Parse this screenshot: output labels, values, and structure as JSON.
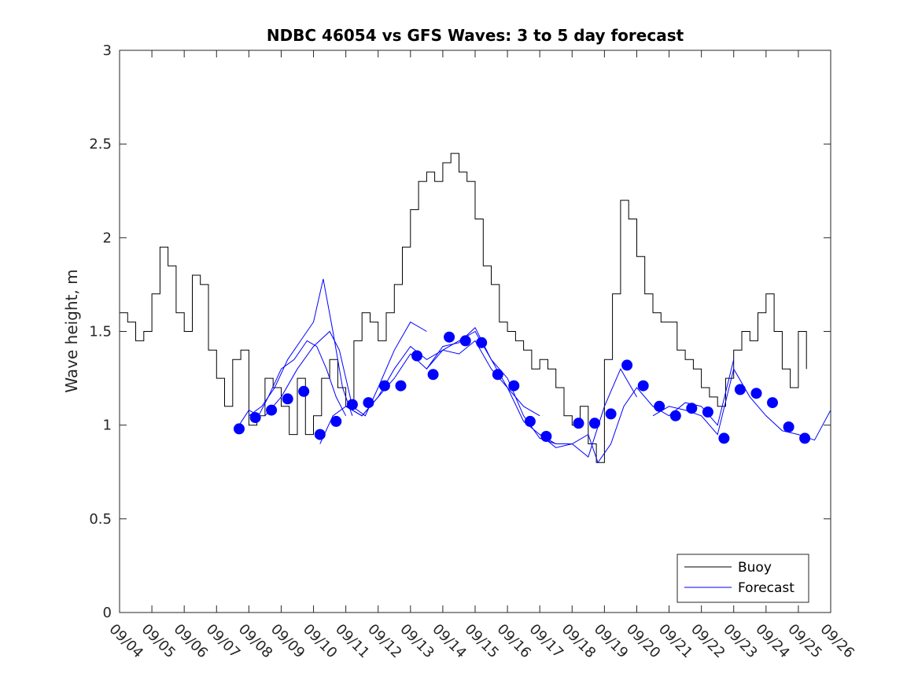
{
  "chart_data": {
    "type": "line",
    "title": "NDBC 46054 vs GFS Waves: 3 to 5 day forecast",
    "xlabel": "",
    "ylabel": "Wave height, m",
    "xlim": [
      0,
      22
    ],
    "ylim": [
      0,
      3
    ],
    "yticks": [
      0,
      0.5,
      1,
      1.5,
      2,
      2.5,
      3
    ],
    "ytick_labels": [
      "0",
      "0.5",
      "1",
      "1.5",
      "2",
      "2.5",
      "3"
    ],
    "xticks": [
      0,
      1,
      2,
      3,
      4,
      5,
      6,
      7,
      8,
      9,
      10,
      11,
      12,
      13,
      14,
      15,
      16,
      17,
      18,
      19,
      20,
      21,
      22
    ],
    "xtick_labels": [
      "09/04",
      "09/05",
      "09/06",
      "09/07",
      "09/08",
      "09/09",
      "09/10",
      "09/11",
      "09/12",
      "09/13",
      "09/14",
      "09/15",
      "09/16",
      "09/17",
      "09/18",
      "09/19",
      "09/20",
      "09/21",
      "09/22",
      "09/23",
      "09/24",
      "09/25",
      "09/26"
    ],
    "legend": {
      "position": "bottom-right",
      "entries": [
        "Buoy",
        "Forecast"
      ]
    },
    "colors": {
      "buoy": "#000000",
      "forecast": "#0000ff",
      "markers": "#0000ff",
      "axes": "#262626"
    },
    "buoy": {
      "x": [
        0,
        0.25,
        0.5,
        0.75,
        1.0,
        1.25,
        1.5,
        1.75,
        2.0,
        2.25,
        2.5,
        2.75,
        3.0,
        3.25,
        3.5,
        3.75,
        4.0,
        4.25,
        4.5,
        4.75,
        5.0,
        5.25,
        5.5,
        5.75,
        6.0,
        6.25,
        6.5,
        6.75,
        7.0,
        7.25,
        7.5,
        7.75,
        8.0,
        8.25,
        8.5,
        8.75,
        9.0,
        9.25,
        9.5,
        9.75,
        10.0,
        10.25,
        10.5,
        10.75,
        11.0,
        11.25,
        11.5,
        11.75,
        12.0,
        12.25,
        12.5,
        12.75,
        13.0,
        13.25,
        13.5,
        13.75,
        14.0,
        14.25,
        14.5,
        14.75,
        15.0,
        15.25,
        15.5,
        15.75,
        16.0,
        16.25,
        16.5,
        16.75,
        17.0,
        17.25,
        17.5,
        17.75,
        18.0,
        18.25,
        18.5,
        18.75,
        19.0,
        19.25,
        19.5,
        19.75,
        20.0,
        20.25,
        20.5,
        20.75,
        21.0,
        21.25
      ],
      "y": [
        1.6,
        1.55,
        1.45,
        1.5,
        1.7,
        1.95,
        1.85,
        1.6,
        1.5,
        1.8,
        1.75,
        1.4,
        1.25,
        1.1,
        1.35,
        1.4,
        1.0,
        1.05,
        1.25,
        1.2,
        1.1,
        0.95,
        1.25,
        0.95,
        1.05,
        1.25,
        1.35,
        1.2,
        1.1,
        1.45,
        1.6,
        1.55,
        1.45,
        1.6,
        1.75,
        1.95,
        2.15,
        2.3,
        2.35,
        2.3,
        2.4,
        2.45,
        2.35,
        2.3,
        2.1,
        1.85,
        1.75,
        1.55,
        1.5,
        1.45,
        1.4,
        1.3,
        1.35,
        1.3,
        1.2,
        1.05,
        1.0,
        1.1,
        0.9,
        0.8,
        1.35,
        1.7,
        2.2,
        2.1,
        1.9,
        1.7,
        1.6,
        1.55,
        1.55,
        1.4,
        1.35,
        1.3,
        1.2,
        1.15,
        1.1,
        1.25,
        1.4,
        1.5,
        1.45,
        1.6,
        1.7,
        1.5,
        1.3,
        1.2,
        1.5,
        1.3
      ]
    },
    "forecast_points": {
      "x": [
        3.7,
        4.2,
        4.7,
        5.2,
        5.7,
        6.2,
        6.7,
        7.2,
        7.7,
        8.2,
        8.7,
        9.2,
        9.7,
        10.2,
        10.7,
        11.2,
        11.7,
        12.2,
        12.7,
        13.2,
        14.2,
        14.7,
        15.2,
        15.7,
        16.2,
        16.7,
        17.2,
        17.7,
        18.2,
        18.7,
        19.2,
        19.7,
        20.2,
        20.7,
        21.2
      ],
      "y": [
        0.98,
        1.04,
        1.08,
        1.14,
        1.18,
        0.95,
        1.02,
        1.11,
        1.12,
        1.21,
        1.21,
        1.37,
        1.27,
        1.47,
        1.45,
        1.44,
        1.27,
        1.21,
        1.02,
        0.94,
        1.01,
        1.01,
        1.06,
        1.32,
        1.21,
        1.1,
        1.05,
        1.09,
        1.07,
        0.93,
        1.19,
        1.17,
        1.12,
        0.99,
        0.93
      ]
    },
    "forecast_runs": [
      {
        "x": [
          3.7,
          4.0,
          4.3,
          4.6,
          5.0,
          5.4,
          5.8,
          6.1,
          6.4,
          6.7,
          7.0
        ],
        "y": [
          1.0,
          1.08,
          1.05,
          1.15,
          1.3,
          1.35,
          1.45,
          1.42,
          1.3,
          1.15,
          1.05
        ]
      },
      {
        "x": [
          4.0,
          4.4,
          4.8,
          5.2,
          5.6,
          6.0,
          6.3,
          6.6,
          6.9,
          7.2
        ],
        "y": [
          1.05,
          1.1,
          1.2,
          1.35,
          1.45,
          1.55,
          1.78,
          1.5,
          1.2,
          1.05
        ]
      },
      {
        "x": [
          4.5,
          5.0,
          5.5,
          6.0,
          6.5,
          6.8,
          7.2,
          7.6,
          8.0,
          8.5,
          9.0,
          9.5
        ],
        "y": [
          1.05,
          1.15,
          1.3,
          1.42,
          1.5,
          1.4,
          1.1,
          1.05,
          1.2,
          1.4,
          1.55,
          1.5
        ]
      },
      {
        "x": [
          6.2,
          6.6,
          7.0,
          7.5,
          8.0,
          8.5,
          9.0,
          9.5,
          10.0,
          10.5,
          11.0,
          11.5,
          12.0,
          12.5,
          13.0,
          13.5
        ],
        "y": [
          0.9,
          1.05,
          1.1,
          1.05,
          1.15,
          1.25,
          1.38,
          1.3,
          1.42,
          1.44,
          1.52,
          1.35,
          1.25,
          1.05,
          0.93,
          0.9
        ]
      },
      {
        "x": [
          7.0,
          7.5,
          8.0,
          8.5,
          9.0,
          9.5,
          10.0,
          10.5,
          11.0,
          11.5,
          12.0,
          12.5,
          13.0
        ],
        "y": [
          1.1,
          1.05,
          1.15,
          1.3,
          1.42,
          1.35,
          1.4,
          1.38,
          1.45,
          1.3,
          1.2,
          1.1,
          1.05
        ]
      },
      {
        "x": [
          9.5,
          10.0,
          10.5,
          11.0,
          11.5,
          12.0,
          12.5,
          13.0,
          13.5,
          14.0,
          14.5,
          15.0,
          15.5,
          16.0
        ],
        "y": [
          1.3,
          1.4,
          1.45,
          1.5,
          1.35,
          1.2,
          1.02,
          0.95,
          0.9,
          0.9,
          0.83,
          1.1,
          1.3,
          1.15
        ]
      },
      {
        "x": [
          13.0,
          13.5,
          14.0,
          14.5,
          14.8,
          15.2,
          15.6,
          16.0,
          16.5,
          17.0,
          17.5,
          18.0,
          18.5,
          19.0
        ],
        "y": [
          0.95,
          0.88,
          0.9,
          0.95,
          0.8,
          0.9,
          1.1,
          1.2,
          1.1,
          1.05,
          1.12,
          1.1,
          1.0,
          1.35
        ]
      },
      {
        "x": [
          16.5,
          17.0,
          17.5,
          18.0,
          18.5,
          19.0,
          19.5,
          20.0,
          20.5,
          21.0,
          21.5,
          22.0
        ],
        "y": [
          1.05,
          1.1,
          1.08,
          1.05,
          0.95,
          1.3,
          1.15,
          1.05,
          0.97,
          0.95,
          0.92,
          1.08
        ]
      }
    ]
  }
}
